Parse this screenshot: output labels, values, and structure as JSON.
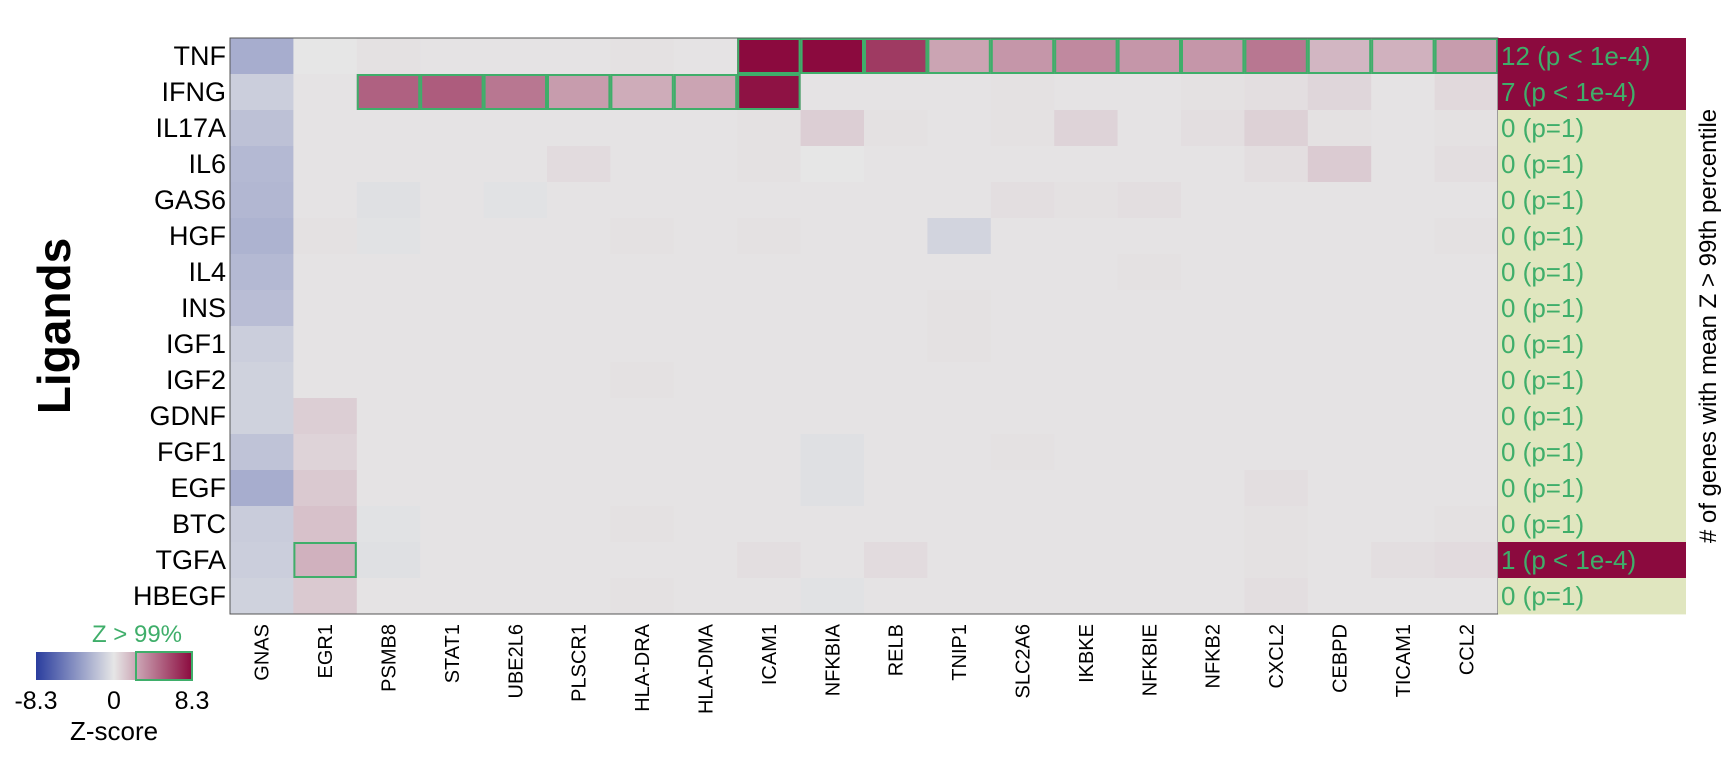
{
  "chart_data": {
    "type": "heatmap",
    "ylabel": "Ligands",
    "right_axis_label": "# of genes with mean Z > 99th percentile",
    "rows": [
      "TNF",
      "IFNG",
      "IL17A",
      "IL6",
      "GAS6",
      "HGF",
      "IL4",
      "INS",
      "IGF1",
      "IGF2",
      "GDNF",
      "FGF1",
      "EGF",
      "BTC",
      "TGFA",
      "HBEGF"
    ],
    "columns": [
      "GNAS",
      "EGR1",
      "PSMB8",
      "STAT1",
      "UBE2L6",
      "PLSCR1",
      "HLA-DRA",
      "HLA-DMA",
      "ICAM1",
      "NFKBIA",
      "RELB",
      "TNIP1",
      "SLC2A6",
      "IKBKE",
      "NFKBIE",
      "NFKB2",
      "CXCL2",
      "CEBPD",
      "TICAM1",
      "CCL2"
    ],
    "values": [
      [
        -2.8,
        0.0,
        0.2,
        0.1,
        0.1,
        0.1,
        0.2,
        0.1,
        8.3,
        8.3,
        6.5,
        2.5,
        3.0,
        3.5,
        3.0,
        3.0,
        4.2,
        1.8,
        2.0,
        2.8
      ],
      [
        -1.2,
        0.1,
        5.0,
        5.2,
        4.2,
        2.8,
        2.2,
        2.5,
        8.0,
        0.1,
        0.1,
        0.1,
        0.2,
        0.1,
        0.1,
        0.2,
        0.3,
        0.6,
        0.1,
        0.5
      ],
      [
        -1.8,
        0.1,
        0.1,
        0.1,
        0.1,
        0.1,
        0.1,
        0.1,
        0.2,
        0.9,
        0.2,
        0.1,
        0.2,
        0.7,
        0.1,
        0.3,
        0.8,
        0.2,
        0.1,
        0.2
      ],
      [
        -2.2,
        0.1,
        0.1,
        0.1,
        0.1,
        0.4,
        0.1,
        0.1,
        0.2,
        0.0,
        0.1,
        0.1,
        0.1,
        0.1,
        0.1,
        0.1,
        0.3,
        1.0,
        0.1,
        0.3
      ],
      [
        -2.3,
        0.1,
        -0.3,
        0.1,
        -0.2,
        0.1,
        0.1,
        0.1,
        0.1,
        0.1,
        0.1,
        0.1,
        0.3,
        0.2,
        0.3,
        0.1,
        0.1,
        0.1,
        0.1,
        0.1
      ],
      [
        -2.5,
        0.2,
        -0.2,
        0.1,
        0.1,
        0.1,
        0.2,
        0.1,
        0.2,
        0.1,
        0.1,
        -0.9,
        0.1,
        0.1,
        0.1,
        0.1,
        0.1,
        0.1,
        0.1,
        0.2
      ],
      [
        -2.2,
        0.1,
        0.1,
        0.1,
        0.1,
        0.1,
        0.1,
        0.1,
        0.1,
        0.1,
        0.1,
        0.1,
        0.1,
        0.1,
        0.2,
        0.1,
        0.1,
        0.1,
        0.1,
        0.1
      ],
      [
        -2.0,
        0.1,
        0.1,
        0.1,
        0.1,
        0.1,
        0.1,
        0.1,
        0.1,
        0.1,
        0.1,
        0.2,
        0.1,
        0.1,
        0.1,
        0.1,
        0.1,
        0.1,
        0.1,
        0.1
      ],
      [
        -1.2,
        0.1,
        0.1,
        0.1,
        0.1,
        0.1,
        0.1,
        0.1,
        0.1,
        0.1,
        0.1,
        0.2,
        0.1,
        0.1,
        0.1,
        0.1,
        0.1,
        0.1,
        0.1,
        0.1
      ],
      [
        -1.0,
        0.1,
        0.1,
        0.1,
        0.1,
        0.1,
        0.2,
        0.1,
        0.1,
        0.1,
        0.1,
        0.1,
        0.1,
        0.1,
        0.1,
        0.1,
        0.1,
        0.1,
        0.1,
        0.1
      ],
      [
        -1.0,
        0.9,
        0.1,
        0.1,
        0.1,
        0.1,
        0.1,
        0.1,
        0.1,
        0.1,
        0.1,
        0.1,
        0.1,
        0.1,
        0.1,
        0.1,
        0.1,
        0.1,
        0.1,
        0.1
      ],
      [
        -1.7,
        0.7,
        0.1,
        0.1,
        0.1,
        0.1,
        0.1,
        0.1,
        0.1,
        -0.3,
        0.1,
        0.1,
        0.2,
        0.1,
        0.1,
        0.1,
        0.1,
        0.1,
        0.1,
        0.1
      ],
      [
        -2.8,
        1.1,
        0.1,
        0.1,
        0.1,
        0.1,
        0.1,
        0.1,
        0.1,
        -0.3,
        0.1,
        0.1,
        0.1,
        0.1,
        0.1,
        0.1,
        0.3,
        0.1,
        0.1,
        0.1
      ],
      [
        -1.3,
        1.4,
        -0.2,
        0.1,
        0.1,
        0.1,
        0.2,
        0.1,
        0.1,
        0.1,
        0.1,
        0.1,
        0.1,
        0.1,
        0.1,
        0.1,
        0.2,
        0.1,
        0.1,
        0.2
      ],
      [
        -1.2,
        2.0,
        -0.3,
        0.1,
        0.1,
        0.1,
        0.1,
        0.1,
        0.3,
        0.1,
        0.4,
        0.1,
        0.1,
        0.1,
        0.1,
        0.1,
        0.2,
        0.1,
        0.3,
        0.4
      ],
      [
        -1.0,
        1.1,
        0.1,
        0.1,
        0.1,
        0.1,
        0.2,
        0.1,
        0.1,
        -0.2,
        0.1,
        0.1,
        0.1,
        0.1,
        0.1,
        0.1,
        0.3,
        0.1,
        0.1,
        0.1
      ]
    ],
    "highlighted_cells": [
      [
        0,
        8
      ],
      [
        0,
        9
      ],
      [
        0,
        10
      ],
      [
        0,
        11
      ],
      [
        0,
        12
      ],
      [
        0,
        13
      ],
      [
        0,
        14
      ],
      [
        0,
        15
      ],
      [
        0,
        16
      ],
      [
        0,
        17
      ],
      [
        0,
        18
      ],
      [
        0,
        19
      ],
      [
        1,
        2
      ],
      [
        1,
        3
      ],
      [
        1,
        4
      ],
      [
        1,
        5
      ],
      [
        1,
        6
      ],
      [
        1,
        7
      ],
      [
        1,
        8
      ],
      [
        14,
        1
      ]
    ],
    "row_summary": [
      {
        "label": "12 (p < 1e-4)",
        "significant": true
      },
      {
        "label": "7 (p < 1e-4)",
        "significant": true
      },
      {
        "label": "0 (p=1)",
        "significant": false
      },
      {
        "label": "0 (p=1)",
        "significant": false
      },
      {
        "label": "0 (p=1)",
        "significant": false
      },
      {
        "label": "0 (p=1)",
        "significant": false
      },
      {
        "label": "0 (p=1)",
        "significant": false
      },
      {
        "label": "0 (p=1)",
        "significant": false
      },
      {
        "label": "0 (p=1)",
        "significant": false
      },
      {
        "label": "0 (p=1)",
        "significant": false
      },
      {
        "label": "0 (p=1)",
        "significant": false
      },
      {
        "label": "0 (p=1)",
        "significant": false
      },
      {
        "label": "0 (p=1)",
        "significant": false
      },
      {
        "label": "0 (p=1)",
        "significant": false
      },
      {
        "label": "1 (p < 1e-4)",
        "significant": true
      },
      {
        "label": "0 (p=1)",
        "significant": false
      }
    ],
    "zlim": [
      -8.3,
      8.3
    ],
    "legend": {
      "title": "Z-score",
      "highlight_label": "Z > 99%",
      "min_label": "-8.3",
      "mid_label": "0",
      "max_label": "8.3",
      "placement": "bottom-left"
    },
    "colors": {
      "low": "#2a3d9e",
      "mid": "#e6e6e6",
      "high": "#8b0a3e",
      "highlight_outline": "#3fae6a",
      "summary_significant": "#8b0a3e",
      "summary_nonsignificant": "#e0e6bf",
      "summary_text": "#3fae6a"
    }
  }
}
